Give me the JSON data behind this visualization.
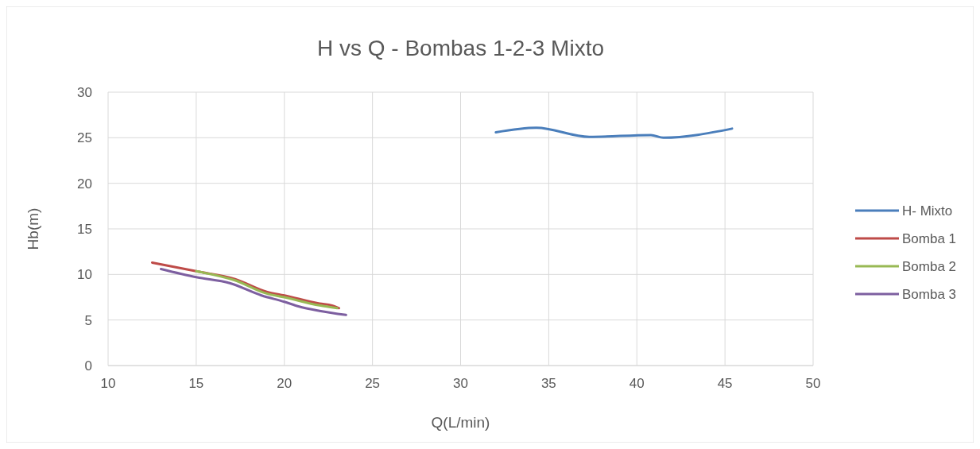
{
  "chart_data": {
    "type": "line",
    "title": "H vs Q - Bombas 1-2-3 Mixto",
    "xlabel": "Q(L/min)",
    "ylabel": "Hb(m)",
    "xlim": [
      10,
      50
    ],
    "xticks": [
      10,
      15,
      20,
      25,
      30,
      35,
      40,
      45,
      50
    ],
    "ylim": [
      0,
      30
    ],
    "yticks": [
      0,
      5,
      10,
      15,
      20,
      25,
      30
    ],
    "grid": true,
    "legend": "right",
    "marker": "none",
    "series": [
      {
        "name": "H- Mixto",
        "color": "#4a7ebb",
        "x": [
          32.0,
          34.3,
          37.3,
          40.8,
          41.5,
          45.4
        ],
        "values": [
          25.6,
          26.1,
          25.1,
          25.3,
          25.0,
          26.0
        ]
      },
      {
        "name": "Bomba 1",
        "color": "#be4b48",
        "x": [
          12.5,
          15.0,
          17.2,
          19.0,
          20.0,
          22.0,
          22.7,
          23.1
        ],
        "values": [
          11.3,
          10.35,
          9.5,
          8.1,
          7.7,
          6.8,
          6.6,
          6.3
        ]
      },
      {
        "name": "Bomba 2",
        "color": "#98b954",
        "x": [
          15.0,
          17.2,
          19.0,
          20.0,
          22.0,
          23.0
        ],
        "values": [
          10.35,
          9.35,
          7.9,
          7.5,
          6.6,
          6.3
        ]
      },
      {
        "name": "Bomba 3",
        "color": "#7d5fa0",
        "x": [
          13.0,
          15.0,
          16.9,
          18.7,
          20.0,
          20.8,
          22.0,
          23.5
        ],
        "values": [
          10.6,
          9.7,
          9.05,
          7.7,
          7.0,
          6.5,
          6.0,
          5.55
        ]
      }
    ]
  }
}
